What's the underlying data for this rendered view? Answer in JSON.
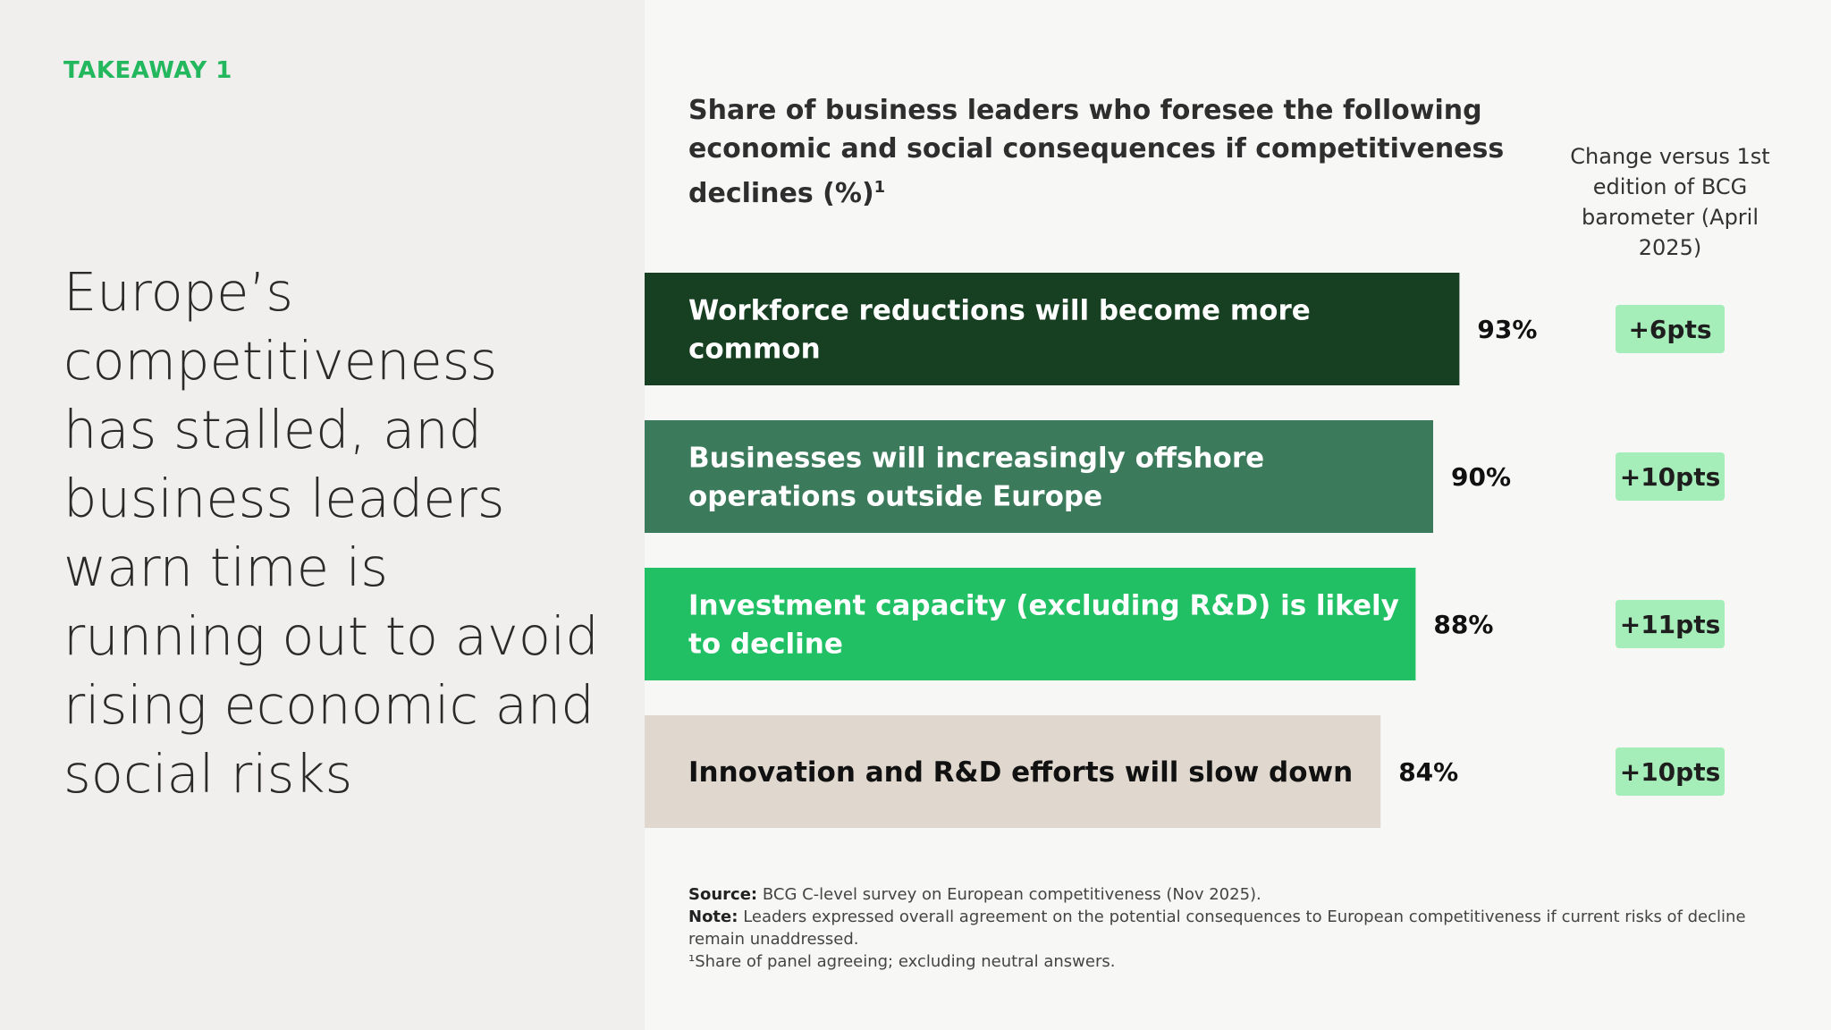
{
  "sidebar": {
    "takeaway_label": "TAKEAWAY 1",
    "headline": "Europe’s competitiveness has stalled, and business leaders warn time is running out to avoid rising economic and social risks"
  },
  "header": {
    "title": "Share of business leaders who foresee the following economic and social consequences if competitiveness declines (%)",
    "title_footnote_marker": "1",
    "change_column_label": "Change versus 1st edition of BCG barometer (April 2025)"
  },
  "chart_data": {
    "type": "bar",
    "orientation": "horizontal",
    "title": "Share of business leaders who foresee the following economic and social consequences if competitiveness declines (%)",
    "unit": "%",
    "categories": [
      "Workforce reductions will become more common",
      "Businesses will increasingly offshore operations outside Europe",
      "Investment capacity (excluding R&D) is likely to decline",
      "Innovation and R&D efforts will slow down"
    ],
    "values": [
      93,
      90,
      88,
      84
    ],
    "value_labels": [
      "93%",
      "90%",
      "88%",
      "84%"
    ],
    "change_labels": [
      "+6pts",
      "+10pts",
      "+11pts",
      "+10pts"
    ],
    "bar_colors": [
      "#173f22",
      "#3b7a5b",
      "#22c065",
      "#e0d8cf"
    ],
    "label_colors": [
      "#ffffff",
      "#ffffff",
      "#ffffff",
      "#111111"
    ],
    "badge_color": "#a6eeb9",
    "legend": "none",
    "grid": false
  },
  "footer": {
    "source_label": "Source:",
    "source_text": "BCG C-level survey on European competitiveness (Nov 2025).",
    "note_label": "Note:",
    "note_text": "Leaders expressed overall agreement on the potential consequences to European competitiveness if current risks of decline remain unaddressed.",
    "footnote": "¹Share of panel agreeing; excluding neutral answers."
  }
}
